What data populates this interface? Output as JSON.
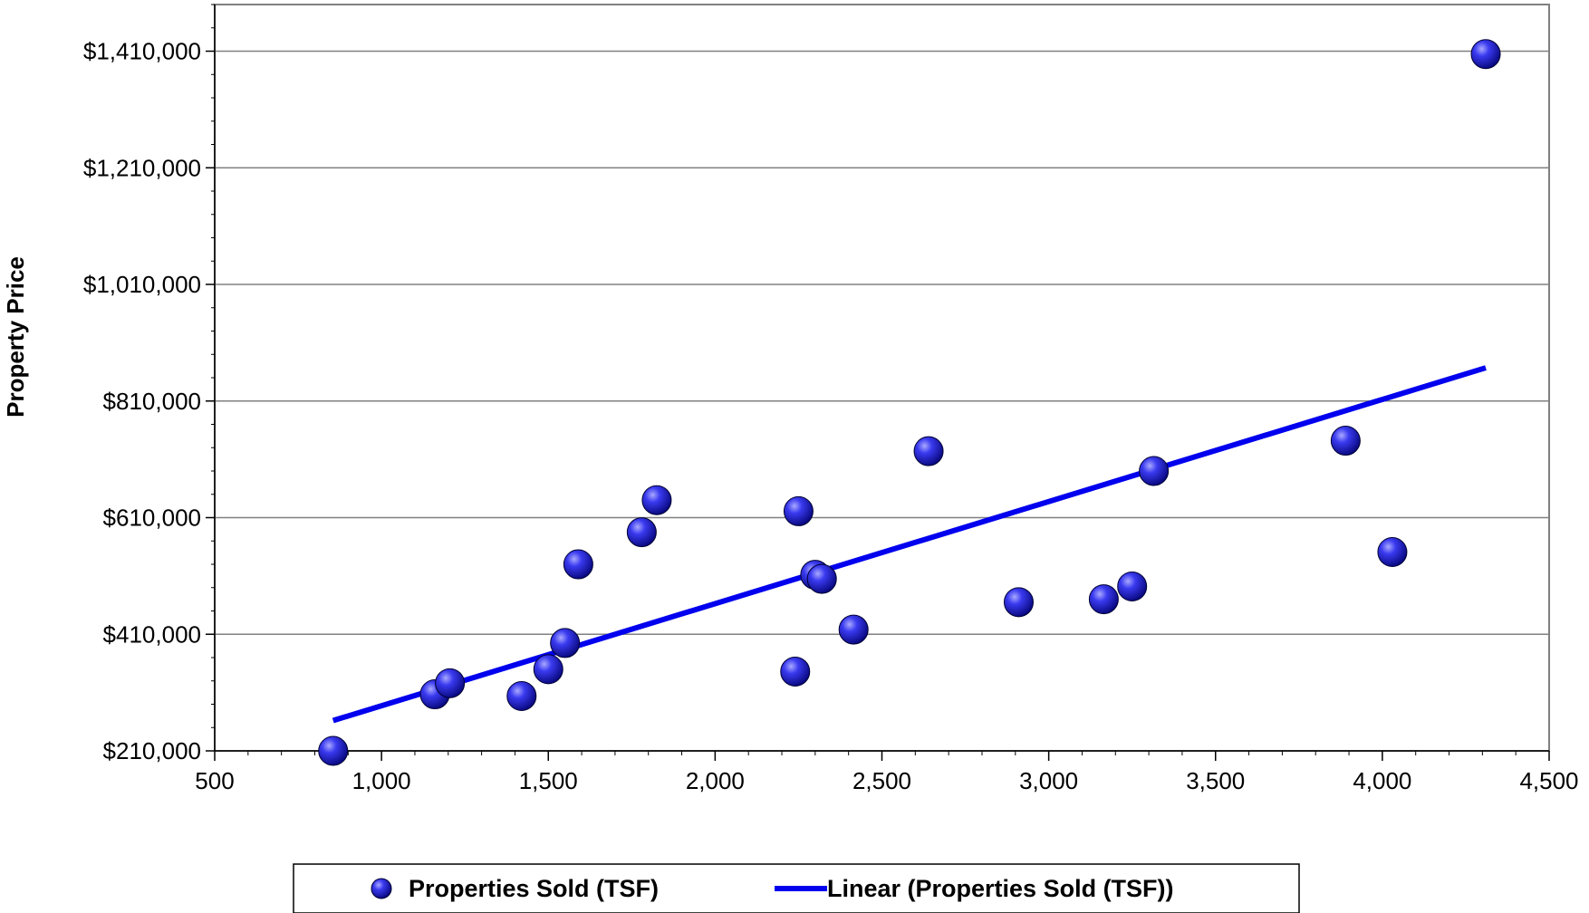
{
  "chart_data": {
    "type": "scatter",
    "ylabel": "Property Price",
    "xlabel": "",
    "xlim": [
      500,
      4500
    ],
    "ylim": [
      210000,
      1490000
    ],
    "x_ticks": [
      500,
      1000,
      1500,
      2000,
      2500,
      3000,
      3500,
      4000,
      4500
    ],
    "x_tick_labels": [
      "500",
      "1,000",
      "1,500",
      "2,000",
      "2,500",
      "3,000",
      "3,500",
      "4,000",
      "4,500"
    ],
    "y_ticks": [
      210000,
      410000,
      610000,
      810000,
      1010000,
      1210000,
      1410000
    ],
    "y_tick_labels": [
      "$210,000",
      "$410,000",
      "$610,000",
      "$810,000",
      "$1,010,000",
      "$1,210,000",
      "$1,410,000"
    ],
    "grid": true,
    "legend_position": "bottom",
    "series": [
      {
        "name": "Properties Sold  (TSF)",
        "kind": "scatter",
        "color": "#1a1acc",
        "points": [
          [
            855,
            210000
          ],
          [
            1160,
            307000
          ],
          [
            1205,
            326000
          ],
          [
            1420,
            304000
          ],
          [
            1500,
            350000
          ],
          [
            1550,
            395000
          ],
          [
            1590,
            530000
          ],
          [
            1780,
            585000
          ],
          [
            1825,
            640000
          ],
          [
            2240,
            346000
          ],
          [
            2250,
            621000
          ],
          [
            2300,
            512000
          ],
          [
            2320,
            505000
          ],
          [
            2415,
            418000
          ],
          [
            2640,
            724000
          ],
          [
            2910,
            465000
          ],
          [
            3165,
            470000
          ],
          [
            3250,
            492000
          ],
          [
            3315,
            690000
          ],
          [
            3890,
            742000
          ],
          [
            4030,
            551000
          ],
          [
            4310,
            1405000
          ]
        ]
      },
      {
        "name": "Linear (Properties Sold  (TSF))",
        "kind": "line",
        "color": "#0000ee",
        "points": [
          [
            855,
            262000
          ],
          [
            4310,
            867000
          ]
        ]
      }
    ]
  }
}
